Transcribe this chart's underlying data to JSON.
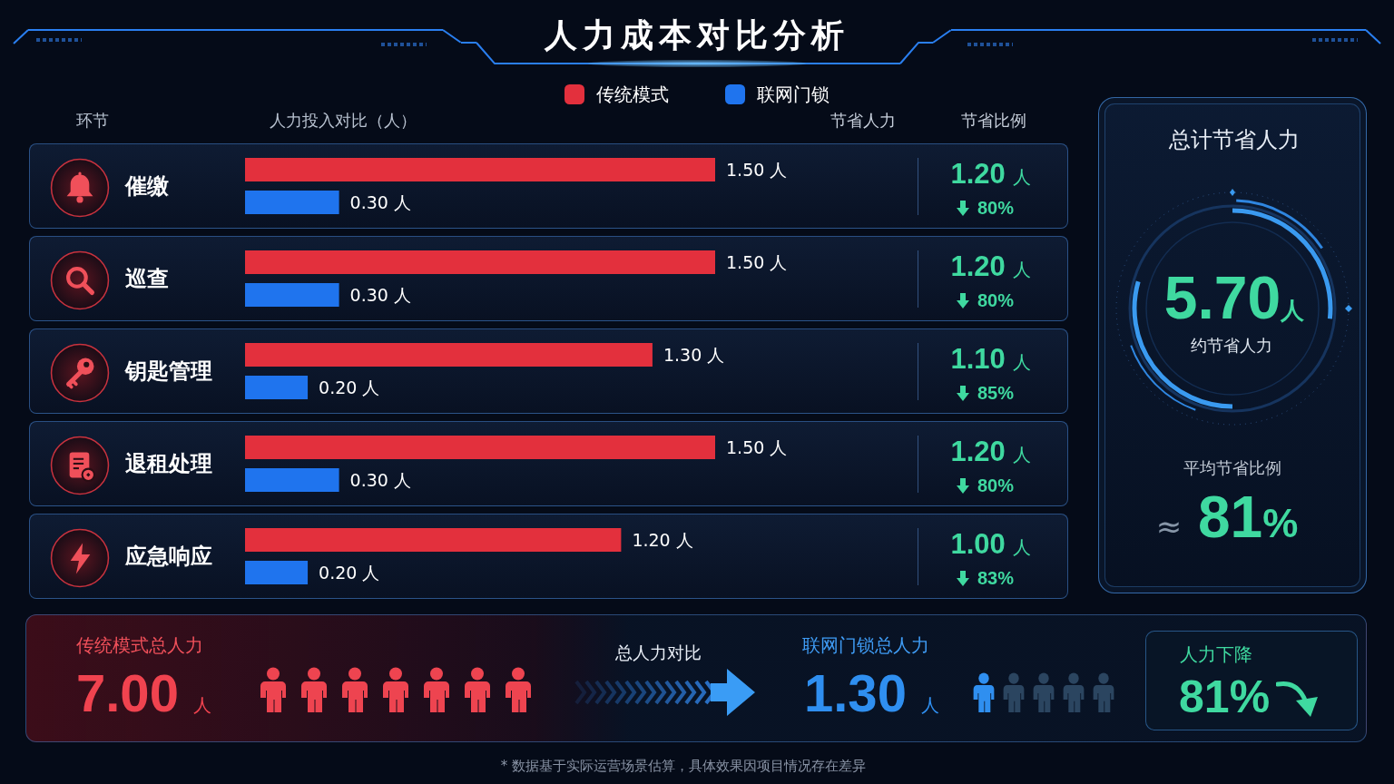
{
  "chart_data": [
    {
      "type": "bar",
      "orientation": "horizontal",
      "title": "人力成本对比分析",
      "xlabel": "人力投入对比（人）",
      "ylabel": "环节",
      "legend": "top",
      "tick_labels": "y",
      "categories": [
        "催缴",
        "巡查",
        "钥匙管理",
        "退租处理",
        "应急响应"
      ],
      "series": [
        {
          "name": "传统模式",
          "color": "#e3303d",
          "values": [
            1.5,
            1.5,
            1.3,
            1.5,
            1.2
          ],
          "value_labels": [
            "1.50 人",
            "1.50 人",
            "1.30 人",
            "1.50 人",
            "1.20 人"
          ]
        },
        {
          "name": "联网门锁",
          "color": "#1f74ee",
          "values": [
            0.3,
            0.3,
            0.2,
            0.3,
            0.2
          ],
          "value_labels": [
            "0.30 人",
            "0.30 人",
            "0.20 人",
            "0.30 人",
            "0.20 人"
          ]
        }
      ],
      "annotations": [
        "* 数据基于实际运营场景估算，具体效果因项目情况存在差异"
      ]
    },
    {
      "type": "other",
      "annotations": [
        "节省人力",
        "节省比例",
        "1.20 人",
        "80%",
        "1.20 人",
        "80%",
        "1.10 人",
        "85%",
        "1.20 人",
        "80%",
        "1.00 人",
        "83%"
      ]
    },
    {
      "type": "other",
      "title": "总计节省人力",
      "annotations": [
        "5.70人",
        "约节省人力",
        "平均节省比例",
        "≈ 81%"
      ]
    },
    {
      "type": "other",
      "annotations": [
        "传统模式总人力",
        "7.00 人",
        "总人力对比",
        "联网门锁总人力",
        "1.30 人",
        "人力下降",
        "81%"
      ]
    }
  ]
}
